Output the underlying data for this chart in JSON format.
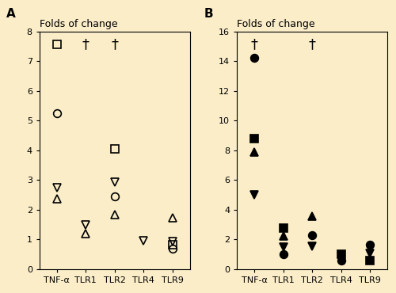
{
  "panel_A": {
    "title": "Folds of change",
    "label": "A",
    "ylim": [
      0,
      8
    ],
    "yticks": [
      0,
      1,
      2,
      3,
      4,
      5,
      6,
      7,
      8
    ],
    "categories": [
      "TNF-α",
      "TLR1",
      "TLR2",
      "TLR4",
      "TLR9"
    ],
    "dagger_cat_indices": [
      1,
      2
    ],
    "series": {
      "square_open": {
        "marker": "s",
        "filled": false,
        "data": {
          "TNF-α": 7.55,
          "TLR2": 4.05,
          "TLR9": 0.83
        }
      },
      "circle_open": {
        "marker": "o",
        "filled": false,
        "data": {
          "TNF-α": 5.25,
          "TLR2": 2.45,
          "TLR9": 0.7
        }
      },
      "triangle_down_open": {
        "marker": "v",
        "filled": false,
        "data": {
          "TNF-α": 2.75,
          "TLR1": 1.5,
          "TLR2": 2.93,
          "TLR4": 0.95,
          "TLR9": 0.93
        }
      },
      "triangle_up_open": {
        "marker": "^",
        "filled": false,
        "data": {
          "TNF-α": 2.38,
          "TLR1": 1.2,
          "TLR2": 1.83,
          "TLR9": 1.73
        }
      }
    }
  },
  "panel_B": {
    "title": "Folds of change",
    "label": "B",
    "ylim": [
      0,
      16
    ],
    "yticks": [
      0,
      2,
      4,
      6,
      8,
      10,
      12,
      14,
      16
    ],
    "categories": [
      "TNF-α",
      "TLR1",
      "TLR2",
      "TLR4",
      "TLR9"
    ],
    "dagger_cat_indices": [
      0,
      2
    ],
    "series": {
      "circle_filled": {
        "marker": "o",
        "filled": true,
        "data": {
          "TNF-α": 14.2,
          "TLR1": 1.0,
          "TLR2": 2.3,
          "TLR4": 0.6,
          "TLR9": 1.65
        }
      },
      "square_filled": {
        "marker": "s",
        "filled": true,
        "data": {
          "TNF-α": 8.8,
          "TLR1": 2.75,
          "TLR4": 1.0,
          "TLR9": 0.6
        }
      },
      "triangle_up_filled": {
        "marker": "^",
        "filled": true,
        "data": {
          "TNF-α": 7.9,
          "TLR1": 2.25,
          "TLR2": 3.55
        }
      },
      "triangle_down_filled": {
        "marker": "v",
        "filled": true,
        "data": {
          "TNF-α": 5.0,
          "TLR1": 1.5,
          "TLR2": 1.55,
          "TLR9": 1.05
        }
      }
    }
  },
  "bg_color": "#faedc8",
  "marker_size": 7,
  "dagger_symbol": "†",
  "dagger_fontsize": 13,
  "title_fontsize": 9,
  "tick_fontsize": 8,
  "label_fontsize": 11
}
